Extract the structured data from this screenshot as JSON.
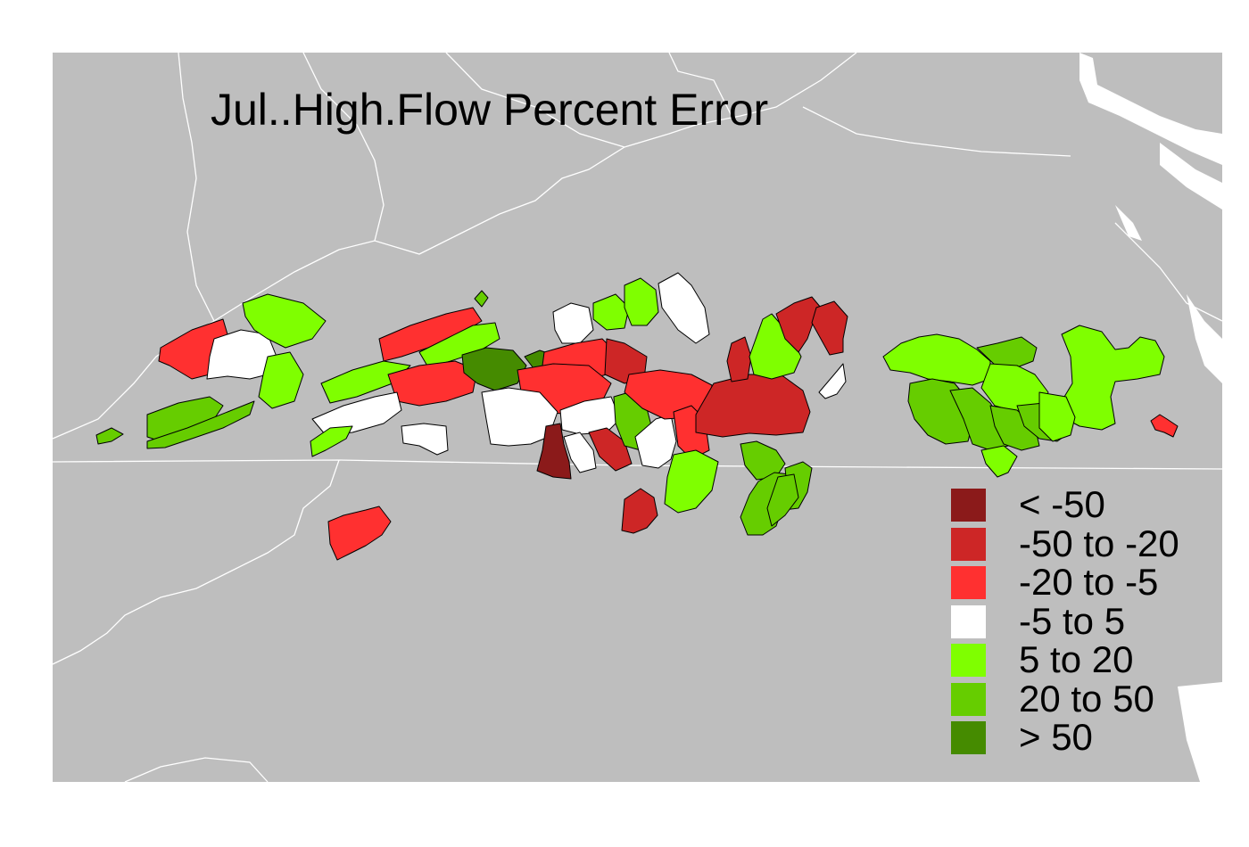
{
  "map": {
    "title": "Jul..High.Flow Percent Error",
    "background_color": "#bebebe",
    "border_color": "#ffffff",
    "legend": {
      "items": [
        {
          "label": "< -50",
          "color": "#8b1a1a"
        },
        {
          "label": "-50 to -20",
          "color": "#cd2626"
        },
        {
          "label": "-20 to -5",
          "color": "#ff3030"
        },
        {
          "label": "-5 to 5",
          "color": "#ffffff"
        },
        {
          "label": "5 to 20",
          "color": "#7fff00"
        },
        {
          "label": "20 to 50",
          "color": "#66cd00"
        },
        {
          "label": "> 50",
          "color": "#458b00"
        }
      ]
    }
  }
}
